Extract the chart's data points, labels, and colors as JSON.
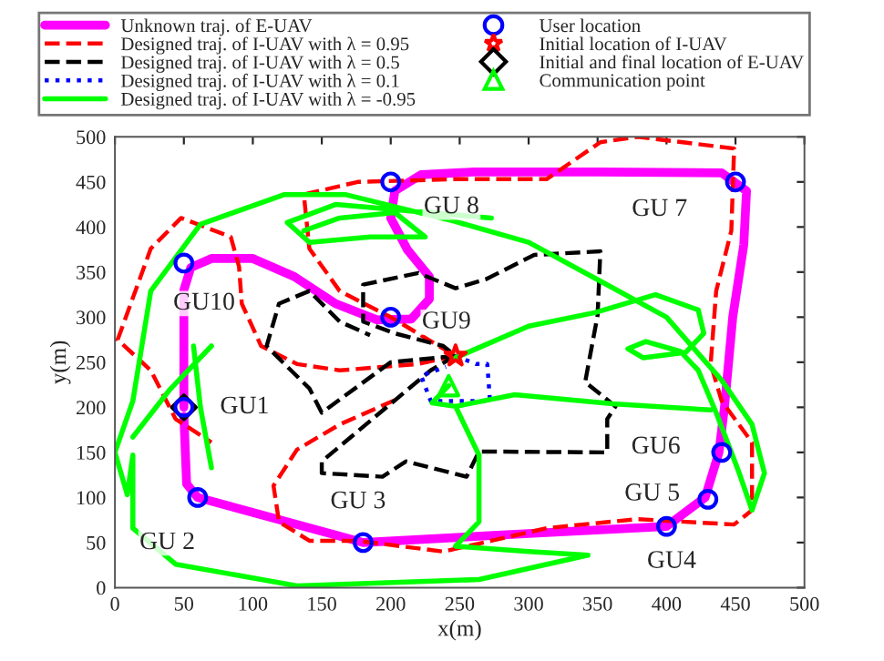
{
  "chart_data": {
    "type": "line",
    "xlabel": "x(m)",
    "ylabel": "y(m)",
    "xlim": [
      0,
      500
    ],
    "ylim": [
      0,
      500
    ],
    "xticks": [
      0,
      50,
      100,
      150,
      200,
      250,
      300,
      350,
      400,
      450,
      500
    ],
    "yticks": [
      0,
      50,
      100,
      150,
      200,
      250,
      300,
      350,
      400,
      450,
      500
    ],
    "grid": false,
    "legend": "top",
    "series": [
      {
        "name": "Unknown traj. of E-UAV",
        "color": "#ff00ff",
        "line_style": "solid",
        "marker": "none",
        "x": [
          50,
          50,
          55,
          70,
          100,
          130,
          160,
          190,
          215,
          228,
          228,
          212,
          200,
          203,
          222,
          260,
          350,
          440,
          458,
          456,
          448,
          442,
          438,
          428,
          400,
          300,
          180,
          60,
          52,
          50
        ],
        "values": [
          200,
          330,
          355,
          365,
          365,
          345,
          315,
          297,
          298,
          320,
          345,
          375,
          410,
          440,
          458,
          461,
          461,
          460,
          440,
          380,
          300,
          200,
          150,
          100,
          68,
          60,
          50,
          100,
          115,
          190
        ]
      },
      {
        "name": "Designed traj. of I-UAV with λ = 0.95",
        "color": "#ff0000",
        "line_style": "dashed",
        "marker": "none",
        "x": [
          247,
          220,
          163,
          132,
          106,
          92,
          90,
          84,
          48,
          26,
          2,
          26,
          44,
          70,
          null,
          203,
          163,
          132,
          115,
          119,
          141,
          176,
          238,
          273,
          313,
          379,
          449,
          462,
          462,
          440,
          432,
          436,
          447,
          449,
          379,
          352,
          313,
          247,
          176,
          137,
          141,
          163,
          200,
          247
        ],
        "values": [
          257,
          248,
          241,
          248,
          268,
          315,
          356,
          389,
          410,
          376,
          275,
          241,
          187,
          161,
          null,
          208,
          181,
          153,
          113,
          73,
          52,
          52,
          40,
          52,
          66,
          76,
          70,
          86,
          161,
          207,
          248,
          329,
          396,
          487,
          500,
          494,
          453,
          453,
          450,
          436,
          376,
          329,
          300,
          257
        ]
      },
      {
        "name": "Designed traj. of I-UAV with λ = 0.5",
        "color": "#000000",
        "line_style": "dashed",
        "marker": "none",
        "x": [
          247,
          229,
          150,
          150,
          194,
          211,
          255,
          264,
          357,
          357,
          363,
          341,
          350,
          352,
          304,
          269,
          247,
          220,
          180,
          180,
          203,
          238,
          247,
          200,
          150,
          141,
          123,
          110,
          119,
          141,
          163,
          185
        ],
        "values": [
          257,
          241,
          140,
          127,
          123,
          140,
          123,
          151,
          150,
          187,
          201,
          228,
          302,
          373,
          369,
          342,
          332,
          349,
          336,
          295,
          282,
          268,
          257,
          250,
          194,
          221,
          248,
          268,
          315,
          329,
          295,
          280
        ]
      },
      {
        "name": "Designed traj. of I-UAV with λ = 0.1",
        "color": "#0000ff",
        "line_style": "dotted",
        "marker": "none",
        "x": [
          247,
          262,
          270,
          272,
          229,
          222,
          240
        ],
        "values": [
          257,
          248,
          248,
          207,
          207,
          235,
          245
        ]
      },
      {
        "name": "Designed traj. of I-UAV with λ = -0.95",
        "color": "#00ff00",
        "line_style": "solid",
        "marker": "none",
        "x": [
          247,
          300,
          348,
          392,
          423,
          427,
          414,
          383,
          372,
          385,
          410,
          423,
          436,
          452,
          462,
          471,
          462,
          440,
          400,
          352,
          300,
          247,
          167,
          123,
          62,
          26,
          13,
          0,
          9,
          13,
          13,
          44,
          132,
          264,
          343,
          null,
          13,
          40,
          70,
          null,
          57,
          62,
          70,
          null,
          137,
          163,
          203,
          225,
          185,
          141,
          125,
          160,
          273,
          null,
          242,
          230,
          247,
          290,
          361,
          432,
          null,
          247,
          264,
          264,
          247,
          300,
          343
        ],
        "values": [
          255,
          290,
          305,
          325,
          308,
          282,
          261,
          255,
          265,
          273,
          262,
          241,
          194,
          130,
          86,
          127,
          181,
          230,
          300,
          340,
          383,
          406,
          436,
          436,
          403,
          329,
          207,
          150,
          103,
          147,
          66,
          26,
          2,
          9,
          36,
          null,
          167,
          220,
          268,
          null,
          268,
          200,
          133,
          null,
          396,
          410,
          416,
          389,
          389,
          383,
          405,
          425,
          410,
          null,
          224,
          205,
          201,
          214,
          204,
          197,
          null,
          201,
          147,
          73,
          46,
          40,
          36
        ]
      },
      {
        "name": "User location",
        "type": "scatter",
        "color": "#0000ff",
        "marker": "circle",
        "x": [
          50,
          60,
          180,
          400,
          430,
          440,
          450,
          200,
          200,
          50
        ],
        "values": [
          200,
          100,
          50,
          68,
          98,
          150,
          450,
          450,
          300,
          360
        ]
      },
      {
        "name": "Initial location of I-UAV",
        "type": "scatter",
        "color": "#ff0000",
        "marker": "star",
        "x": [
          247
        ],
        "values": [
          257
        ]
      },
      {
        "name": "Initial and final location of E-UAV",
        "type": "scatter",
        "color": "#000000",
        "marker": "diamond",
        "x": [
          50
        ],
        "values": [
          200
        ]
      },
      {
        "name": "Communication point",
        "type": "scatter",
        "color": "#00ff00",
        "marker": "triangle",
        "x": [
          242
        ],
        "values": [
          224
        ]
      }
    ],
    "annotations": [
      {
        "text": "GU1",
        "x": 50,
        "y": 200
      },
      {
        "text": "GU 2",
        "x": 60,
        "y": 100
      },
      {
        "text": "GU 3",
        "x": 180,
        "y": 50
      },
      {
        "text": "GU4",
        "x": 400,
        "y": 68
      },
      {
        "text": "GU 5",
        "x": 430,
        "y": 98
      },
      {
        "text": "GU6",
        "x": 440,
        "y": 150
      },
      {
        "text": "GU 7",
        "x": 450,
        "y": 450
      },
      {
        "text": "GU 8",
        "x": 200,
        "y": 450
      },
      {
        "text": "GU9",
        "x": 200,
        "y": 300
      },
      {
        "text": "GU10",
        "x": 50,
        "y": 360
      }
    ]
  }
}
